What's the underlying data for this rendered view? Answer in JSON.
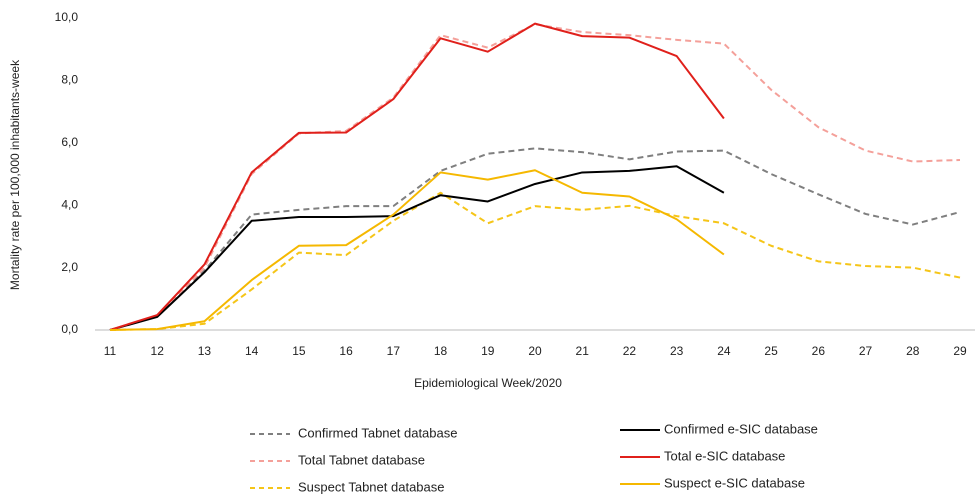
{
  "chart_data": {
    "type": "line",
    "y_label": "Mortality rate per 100,000 inhabitants-week",
    "x_label": "Epidemiological Week/2020",
    "categories": [
      "11",
      "12",
      "13",
      "14",
      "15",
      "16",
      "17",
      "18",
      "19",
      "20",
      "21",
      "22",
      "23",
      "24",
      "25",
      "26",
      "27",
      "28",
      "29"
    ],
    "ylim": [
      0,
      10
    ],
    "yticks": [
      {
        "value": 0,
        "label": "0,0"
      },
      {
        "value": 2,
        "label": "2,0"
      },
      {
        "value": 4,
        "label": "4,0"
      },
      {
        "value": 6,
        "label": "6,0"
      },
      {
        "value": 8,
        "label": "8,0"
      },
      {
        "value": 10,
        "label": "10,0"
      }
    ],
    "grid": false,
    "series": [
      {
        "name": "Confirmed Tabnet database",
        "color": "#7f7f7f",
        "dashed": true,
        "values": [
          0,
          0.45,
          1.9,
          3.7,
          3.85,
          3.97,
          3.97,
          5.1,
          5.65,
          5.82,
          5.7,
          5.47,
          5.72,
          5.75,
          5.0,
          4.35,
          3.72,
          3.38,
          3.78
        ]
      },
      {
        "name": "Total Tabnet database",
        "color": "#f4a09a",
        "dashed": true,
        "values": [
          0,
          0.45,
          2.0,
          5.0,
          6.3,
          6.38,
          7.45,
          9.45,
          9.05,
          9.8,
          9.55,
          9.45,
          9.3,
          9.18,
          7.7,
          6.5,
          5.75,
          5.4,
          5.45
        ]
      },
      {
        "name": "Suspect Tabnet database",
        "color": "#f5c518",
        "dashed": true,
        "values": [
          0,
          0.03,
          0.2,
          1.3,
          2.48,
          2.4,
          3.5,
          4.4,
          3.42,
          3.97,
          3.85,
          3.98,
          3.65,
          3.42,
          2.7,
          2.2,
          2.05,
          2.0,
          1.68
        ]
      },
      {
        "name": "Confirmed e-SIC database",
        "color": "#000000",
        "dashed": false,
        "values": [
          0,
          0.42,
          1.85,
          3.5,
          3.62,
          3.62,
          3.65,
          4.32,
          4.12,
          4.68,
          5.05,
          5.1,
          5.25,
          4.4,
          null,
          null,
          null,
          null,
          null
        ]
      },
      {
        "name": "Total e-SIC database",
        "color": "#e0201b",
        "dashed": false,
        "values": [
          0,
          0.48,
          2.1,
          5.05,
          6.32,
          6.33,
          7.4,
          9.35,
          8.92,
          9.82,
          9.42,
          9.37,
          8.78,
          6.78,
          null,
          null,
          null,
          null,
          null
        ]
      },
      {
        "name": "Suspect e-SIC database",
        "color": "#f5b800",
        "dashed": false,
        "values": [
          0,
          0.03,
          0.28,
          1.6,
          2.7,
          2.72,
          3.7,
          5.05,
          4.82,
          5.12,
          4.4,
          4.28,
          3.55,
          2.42,
          null,
          null,
          null,
          null,
          null
        ]
      }
    ]
  }
}
